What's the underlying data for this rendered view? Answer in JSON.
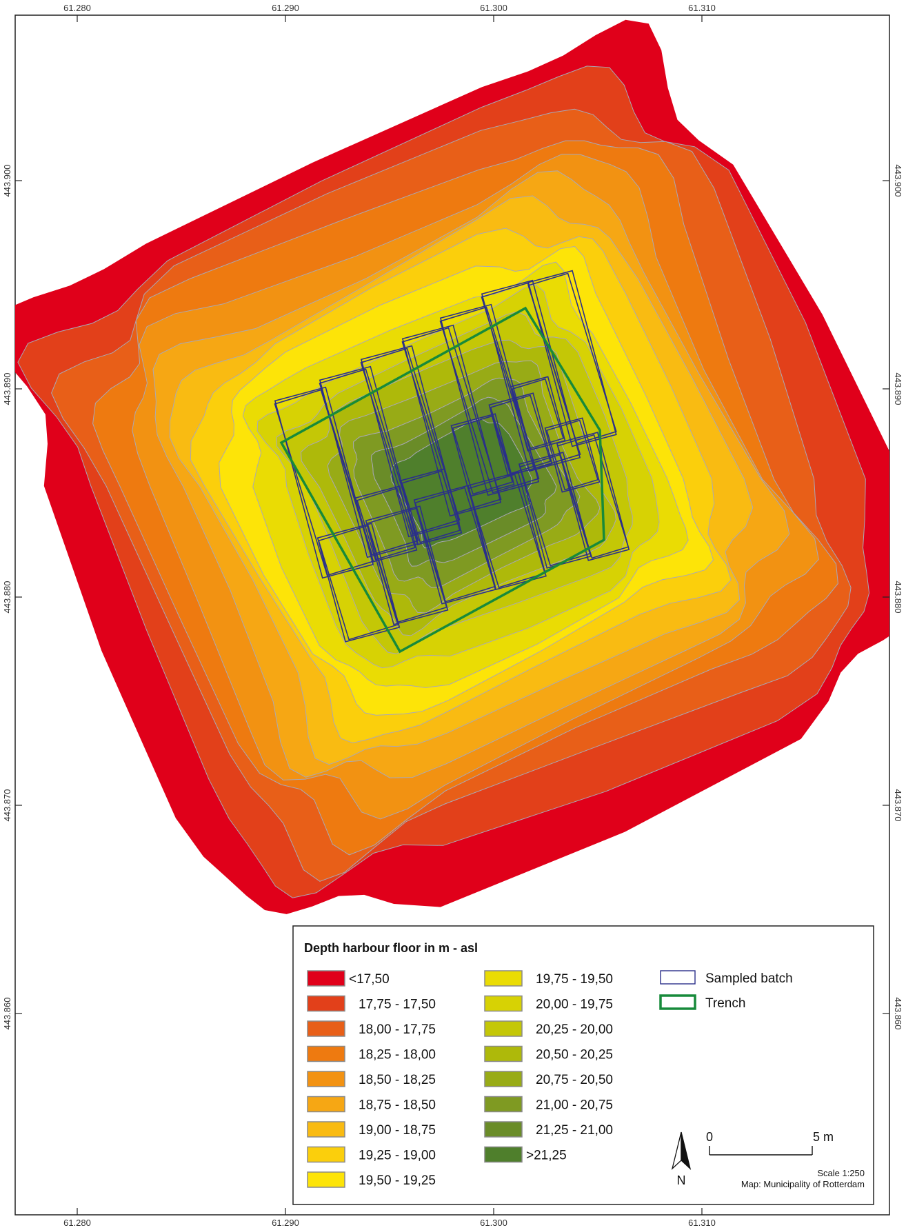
{
  "map": {
    "grid_x_labels": [
      "61.280",
      "61.290",
      "61.300",
      "61.310"
    ],
    "grid_y_labels": [
      "443.900",
      "443.890",
      "443.880",
      "443.870",
      "443.860"
    ]
  },
  "legend": {
    "title": "Depth harbour floor in m - asl",
    "classes": [
      {
        "label": "<17,50",
        "color": "#e0001a"
      },
      {
        "label": "17,75  - 17,50",
        "color": "#e2401a"
      },
      {
        "label": "18,00  - 17,75",
        "color": "#e85f18"
      },
      {
        "label": "18,25  - 18,00",
        "color": "#ee7a10"
      },
      {
        "label": "18,50  - 18,25",
        "color": "#f29212"
      },
      {
        "label": "18,75  - 18,50",
        "color": "#f6a714"
      },
      {
        "label": "19,00  - 18,75",
        "color": "#f9bb12"
      },
      {
        "label": "19,25  - 19,00",
        "color": "#fbcf0c"
      },
      {
        "label": "19,50  - 19,25",
        "color": "#fde408"
      },
      {
        "label": "19,75  - 19,50",
        "color": "#eadc04"
      },
      {
        "label": "20,00  - 19,75",
        "color": "#d7d204"
      },
      {
        "label": "20,25  - 20,00",
        "color": "#c4c706"
      },
      {
        "label": "20,50  - 20,25",
        "color": "#aeb90a"
      },
      {
        "label": "20,75  - 20,50",
        "color": "#98ab16"
      },
      {
        "label": "21,00  - 20,75",
        "color": "#7f9a22"
      },
      {
        "label": "21,25  - 21,00",
        "color": "#6a8c28"
      },
      {
        "label": ">21,25",
        "color": "#4f7f2c"
      }
    ],
    "symbols": [
      {
        "label": "Sampled batch",
        "color": "#2a2f8a"
      },
      {
        "label": "Trench",
        "color": "#178a3a"
      }
    ]
  },
  "scalebar": {
    "start": "0",
    "end": "5 m",
    "scale": "Scale 1:250"
  },
  "north_arrow": {
    "label": "N"
  },
  "credit": "Map: Municipality of Rotterdam"
}
